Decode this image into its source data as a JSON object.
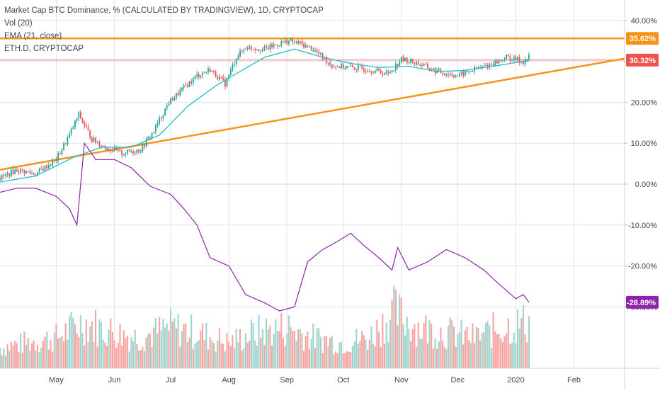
{
  "legend": {
    "title": "Market Cap BTC Dominance, % (CALCULATED BY TRADINGVIEW), 1D, CRYPTOCAP",
    "vol": "Vol (20)",
    "ema": "EMA (21, close)",
    "compare": "ETH.D, CRYPTOCAP"
  },
  "colors": {
    "up": "#26a69a",
    "down": "#ef5350",
    "vol_up": "#9fd4cc",
    "vol_down": "#f6a3a1",
    "ema": "#1fbcd2",
    "eth": "#8e24aa",
    "trend": "#f7931a",
    "grid": "#e0e3eb",
    "axis_text": "#434651"
  },
  "chart_data": {
    "type": "line",
    "x_range": [
      "2019-04-01",
      "2020-02-28"
    ],
    "ylim": [
      -45,
      45
    ],
    "y_ticks": [
      {
        "value": 40,
        "label": "40.00%"
      },
      {
        "value": 30,
        "label": "30.00%"
      },
      {
        "value": 20,
        "label": "20.00%"
      },
      {
        "value": 10,
        "label": "10.00%"
      },
      {
        "value": 0,
        "label": "0.00%"
      },
      {
        "value": -10,
        "label": "-10.00%"
      },
      {
        "value": -20,
        "label": "-20.00%"
      },
      {
        "value": -30,
        "label": "-30.00%"
      }
    ],
    "x_ticks": [
      {
        "date": "2019-05-01",
        "label": "May"
      },
      {
        "date": "2019-06-01",
        "label": "Jun"
      },
      {
        "date": "2019-07-01",
        "label": "Jul"
      },
      {
        "date": "2019-08-01",
        "label": "Aug"
      },
      {
        "date": "2019-09-01",
        "label": "Sep"
      },
      {
        "date": "2019-10-01",
        "label": "Oct"
      },
      {
        "date": "2019-11-01",
        "label": "Nov"
      },
      {
        "date": "2019-12-01",
        "label": "Dec"
      },
      {
        "date": "2020-01-01",
        "label": "2020"
      },
      {
        "date": "2020-02-01",
        "label": "Feb"
      }
    ],
    "price_labels": [
      {
        "value": 35.62,
        "label": "35.62%",
        "color": "#f7931a"
      },
      {
        "value": 30.32,
        "label": "30.32%",
        "color": "#ef5350"
      },
      {
        "value": -28.89,
        "label": "-28.89%",
        "color": "#8e24aa"
      }
    ],
    "hlines": [
      {
        "value": 35.62,
        "color": "#f7931a",
        "width": 2.5
      },
      {
        "value": 30.32,
        "color": "#ef5350",
        "width": 0.8
      },
      {
        "value": 0,
        "color": "#d1d4dc",
        "width": 1
      }
    ],
    "trendline": {
      "from": {
        "date": "2019-04-01",
        "value": 3.5
      },
      "to": {
        "date": "2020-02-28",
        "value": 30.7
      }
    },
    "btc_dominance": {
      "x": [
        "2019-04-01",
        "2019-04-10",
        "2019-04-20",
        "2019-05-01",
        "2019-05-08",
        "2019-05-13",
        "2019-05-20",
        "2019-05-27",
        "2019-06-05",
        "2019-06-15",
        "2019-06-22",
        "2019-06-30",
        "2019-07-08",
        "2019-07-15",
        "2019-07-22",
        "2019-07-30",
        "2019-08-05",
        "2019-08-10",
        "2019-08-20",
        "2019-09-01",
        "2019-09-07",
        "2019-09-15",
        "2019-09-25",
        "2019-10-05",
        "2019-10-15",
        "2019-10-25",
        "2019-11-01",
        "2019-11-10",
        "2019-11-20",
        "2019-12-01",
        "2019-12-10",
        "2019-12-20",
        "2019-12-27",
        "2020-01-05",
        "2020-01-08"
      ],
      "values": [
        1.5,
        3.5,
        2.5,
        6.0,
        12.0,
        17.0,
        11.0,
        9.0,
        7.5,
        8.5,
        13.0,
        20.0,
        23.5,
        26.5,
        28.0,
        24.5,
        31.0,
        33.5,
        33.0,
        35.0,
        34.5,
        33.0,
        29.0,
        28.5,
        28.0,
        27.0,
        30.5,
        29.5,
        27.5,
        26.5,
        28.0,
        29.5,
        31.0,
        30.0,
        31.0
      ]
    },
    "ema21": {
      "x": [
        "2019-04-01",
        "2019-04-20",
        "2019-05-10",
        "2019-05-25",
        "2019-06-10",
        "2019-06-25",
        "2019-07-10",
        "2019-07-25",
        "2019-08-05",
        "2019-08-20",
        "2019-09-05",
        "2019-09-20",
        "2019-10-05",
        "2019-10-20",
        "2019-11-05",
        "2019-11-20",
        "2019-12-05",
        "2019-12-20",
        "2020-01-05",
        "2020-01-08"
      ],
      "values": [
        0.5,
        2.0,
        6.5,
        9.0,
        9.0,
        12.0,
        19.0,
        24.0,
        27.0,
        31.0,
        33.0,
        31.0,
        29.5,
        28.5,
        28.8,
        27.5,
        27.8,
        28.8,
        30.0,
        30.2
      ]
    },
    "eth_dominance": {
      "x": [
        "2019-04-01",
        "2019-04-10",
        "2019-04-20",
        "2019-05-01",
        "2019-05-08",
        "2019-05-12",
        "2019-05-16",
        "2019-05-22",
        "2019-06-01",
        "2019-06-10",
        "2019-06-20",
        "2019-07-01",
        "2019-07-08",
        "2019-07-15",
        "2019-07-22",
        "2019-08-01",
        "2019-08-10",
        "2019-08-20",
        "2019-08-28",
        "2019-09-05",
        "2019-09-12",
        "2019-09-20",
        "2019-09-28",
        "2019-10-05",
        "2019-10-12",
        "2019-10-20",
        "2019-10-27",
        "2019-10-30",
        "2019-11-05",
        "2019-11-15",
        "2019-11-25",
        "2019-12-05",
        "2019-12-15",
        "2019-12-22",
        "2020-01-01",
        "2020-01-05",
        "2020-01-08"
      ],
      "values": [
        -2.0,
        -1.0,
        -1.0,
        -3.0,
        -6.0,
        -10.0,
        10.0,
        6.0,
        6.0,
        4.0,
        -0.5,
        -2.5,
        -6.0,
        -10.0,
        -18.0,
        -20.0,
        -27.0,
        -29.0,
        -31.0,
        -30.0,
        -19.0,
        -16.0,
        -14.0,
        -12.0,
        -15.0,
        -18.0,
        -21.0,
        -15.5,
        -21.0,
        -19.0,
        -16.0,
        -18.0,
        -21.0,
        -24.0,
        -28.0,
        -27.0,
        -28.9
      ]
    },
    "volume": {
      "x": [
        "2019-04-01",
        "2019-04-15",
        "2019-05-01",
        "2019-05-15",
        "2019-06-01",
        "2019-06-15",
        "2019-07-01",
        "2019-07-15",
        "2019-08-01",
        "2019-08-15",
        "2019-09-01",
        "2019-09-15",
        "2019-10-01",
        "2019-10-15",
        "2019-10-28",
        "2019-11-10",
        "2019-11-25",
        "2019-12-10",
        "2019-12-25",
        "2020-01-08"
      ],
      "values": [
        20,
        25,
        30,
        45,
        35,
        30,
        40,
        35,
        25,
        35,
        40,
        30,
        25,
        30,
        55,
        40,
        35,
        30,
        40,
        45
      ]
    }
  }
}
